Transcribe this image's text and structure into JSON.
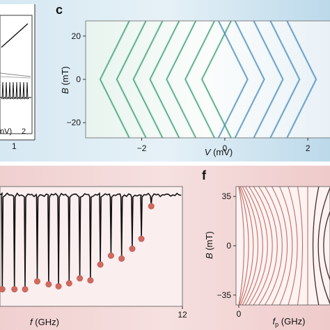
{
  "panels": {
    "c": {
      "letter": "c"
    },
    "f": {
      "letter": "f"
    },
    "left_top": {
      "tick_1": "1",
      "tick_2": "2",
      "partial_label": "nV)"
    },
    "left_bottom": {
      "tick_12": "12"
    }
  },
  "colors": {
    "top_bg_left": "#dfeef6",
    "top_bg_right": "#c7e0ee",
    "bottom_bg": "#f3d8d8",
    "bottom_bg_edge": "#efcaca",
    "green_stripe": "#2e9a6f",
    "blue_stripe": "#3c86b8",
    "dip_line": "#111111",
    "dip_marker": "#d0695f",
    "f_curve": "#c46b62"
  },
  "chart_data": [
    {
      "id": "c",
      "type": "heatmap",
      "xlabel_pre": "V",
      "xlabel_unit": "(mV)",
      "ylabel_pre": "B",
      "ylabel_unit": "(mT)",
      "xlim": [
        -3.35,
        2.55
      ],
      "ylim": [
        -27,
        27
      ],
      "x_ticks": [
        {
          "v": -2,
          "label": "−2"
        },
        {
          "v": 0,
          "label": "0"
        },
        {
          "v": 2,
          "label": "2"
        }
      ],
      "y_ticks": [
        {
          "v": 20,
          "label": "20"
        },
        {
          "v": 0,
          "label": "0"
        },
        {
          "v": -20,
          "label": "−20"
        }
      ],
      "stripe_tips_left": [
        -3.0,
        -2.6,
        -2.2,
        -1.8,
        -1.4,
        -0.95,
        -0.55
      ],
      "stripe_tips_right": [
        0.55,
        0.95,
        1.4,
        1.8,
        2.2
      ]
    },
    {
      "id": "e",
      "type": "line",
      "xlabel_pre": "f",
      "xlabel_unit": "(GHz)",
      "dip_x": [
        0.15,
        0.95,
        1.65,
        2.45,
        3.2,
        3.85,
        4.55,
        5.25,
        5.95,
        6.6,
        7.3,
        8.0,
        8.7,
        9.3,
        9.95
      ],
      "dip_depth": [
        0.94,
        0.94,
        0.94,
        0.86,
        0.89,
        0.91,
        0.88,
        0.83,
        0.85,
        0.69,
        0.6,
        0.63,
        0.53,
        0.43,
        0.1
      ]
    },
    {
      "id": "f",
      "type": "line",
      "xlabel_pre": "f",
      "xlabel_sub": "p",
      "xlabel_unit": "(GHz)",
      "ylabel_pre": "B",
      "ylabel_unit": "(mT)",
      "ylim": [
        -42,
        42
      ],
      "x_ticks": [
        {
          "v": 0,
          "label": "0"
        }
      ],
      "y_ticks": [
        {
          "v": 35,
          "label": "35"
        },
        {
          "v": 0,
          "label": "0"
        },
        {
          "v": -35,
          "label": "−35"
        }
      ],
      "curves": 17
    }
  ]
}
